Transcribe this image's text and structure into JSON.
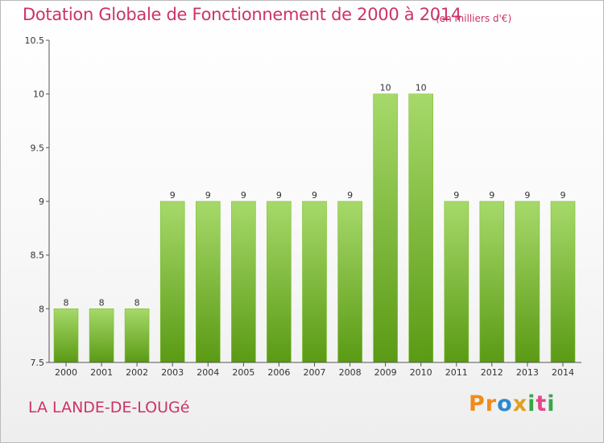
{
  "header": {
    "title": "Dotation Globale de Fonctionnement de 2000 à 2014",
    "subtitle": "(en milliers d'€)"
  },
  "footer": {
    "commune": "LA LANDE-DE-LOUGé",
    "logo": {
      "letters": [
        "P",
        "r",
        "o",
        "x",
        "i",
        "t",
        "i"
      ],
      "colors": [
        "#f08c1a",
        "#f08c1a",
        "#2a8ad0",
        "#e0a020",
        "#3aa64a",
        "#e04a8a",
        "#3aa64a"
      ]
    }
  },
  "chart_data": {
    "type": "bar",
    "categories": [
      "2000",
      "2001",
      "2002",
      "2003",
      "2004",
      "2005",
      "2006",
      "2007",
      "2008",
      "2009",
      "2010",
      "2011",
      "2012",
      "2013",
      "2014"
    ],
    "values": [
      8,
      8,
      8,
      9,
      9,
      9,
      9,
      9,
      9,
      10,
      10,
      9,
      9,
      9,
      9
    ],
    "data_labels": [
      "8",
      "8",
      "8",
      "9",
      "9",
      "9",
      "9",
      "9",
      "9",
      "10",
      "10",
      "9",
      "9",
      "9",
      "9"
    ],
    "title": "Dotation Globale de Fonctionnement de 2000 à 2014",
    "subtitle": "(en milliers d'€)",
    "xlabel": "",
    "ylabel": "",
    "ylim": [
      7.5,
      10.5
    ],
    "yticks": [
      7.5,
      8,
      8.5,
      9,
      9.5,
      10,
      10.5
    ],
    "ytick_labels": [
      "7.5",
      "8",
      "8.5",
      "9",
      "9.5",
      "10",
      "10.5"
    ],
    "grid": false,
    "colors": {
      "bar_top": "#a6d96a",
      "bar_bottom": "#5a9a14",
      "bar_edge": "#7fbf30",
      "axis": "#555555",
      "text_accent": "#cc3366"
    }
  }
}
